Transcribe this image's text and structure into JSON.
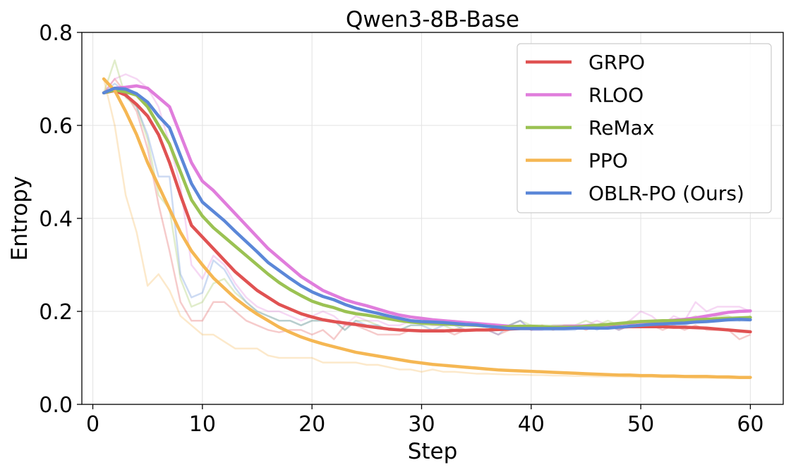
{
  "chart_data": {
    "type": "line",
    "title": "Qwen3-8B-Base",
    "xlabel": "Step",
    "ylabel": "Entropy",
    "xlim": [
      -1,
      63
    ],
    "ylim": [
      0.0,
      0.8
    ],
    "xticks": [
      0,
      10,
      20,
      30,
      40,
      50,
      60
    ],
    "yticks": [
      0.0,
      0.2,
      0.4,
      0.6,
      0.8
    ],
    "xtick_labels": [
      "0",
      "10",
      "20",
      "30",
      "40",
      "50",
      "60"
    ],
    "ytick_labels": [
      "0.0",
      "0.2",
      "0.4",
      "0.6",
      "0.8"
    ],
    "grid": true,
    "legend_position": "top-right",
    "x": [
      1,
      2,
      3,
      4,
      5,
      6,
      7,
      8,
      9,
      10,
      11,
      12,
      13,
      14,
      15,
      16,
      17,
      18,
      19,
      20,
      21,
      22,
      23,
      24,
      25,
      26,
      27,
      28,
      29,
      30,
      31,
      32,
      33,
      34,
      35,
      36,
      37,
      38,
      39,
      40,
      41,
      42,
      43,
      44,
      45,
      46,
      47,
      48,
      49,
      50,
      51,
      52,
      53,
      54,
      55,
      56,
      57,
      58,
      59,
      60
    ],
    "series": [
      {
        "name": "GRPO",
        "color": "#e05252",
        "smoothed": [
          0.67,
          0.675,
          0.665,
          0.645,
          0.62,
          0.58,
          0.52,
          0.45,
          0.385,
          0.36,
          0.335,
          0.31,
          0.285,
          0.265,
          0.245,
          0.23,
          0.215,
          0.205,
          0.195,
          0.188,
          0.182,
          0.178,
          0.175,
          0.172,
          0.168,
          0.165,
          0.162,
          0.16,
          0.159,
          0.158,
          0.158,
          0.158,
          0.159,
          0.159,
          0.16,
          0.16,
          0.161,
          0.162,
          0.163,
          0.163,
          0.164,
          0.164,
          0.165,
          0.165,
          0.165,
          0.166,
          0.166,
          0.166,
          0.167,
          0.167,
          0.167,
          0.167,
          0.166,
          0.166,
          0.165,
          0.164,
          0.162,
          0.16,
          0.158,
          0.156
        ],
        "raw": [
          0.67,
          0.7,
          0.67,
          0.63,
          0.55,
          0.43,
          0.33,
          0.22,
          0.18,
          0.18,
          0.22,
          0.22,
          0.2,
          0.18,
          0.17,
          0.16,
          0.155,
          0.16,
          0.16,
          0.15,
          0.16,
          0.14,
          0.17,
          0.17,
          0.16,
          0.15,
          0.15,
          0.15,
          0.16,
          0.16,
          0.16,
          0.16,
          0.15,
          0.16,
          0.16,
          0.16,
          0.15,
          0.16,
          0.17,
          0.16,
          0.17,
          0.16,
          0.17,
          0.17,
          0.16,
          0.17,
          0.17,
          0.16,
          0.17,
          0.18,
          0.17,
          0.16,
          0.17,
          0.16,
          0.17,
          0.16,
          0.16,
          0.16,
          0.14,
          0.15
        ]
      },
      {
        "name": "RLOO",
        "color": "#e07ddc",
        "smoothed": [
          0.67,
          0.68,
          0.682,
          0.685,
          0.68,
          0.66,
          0.64,
          0.58,
          0.52,
          0.48,
          0.46,
          0.435,
          0.41,
          0.385,
          0.36,
          0.335,
          0.315,
          0.295,
          0.275,
          0.26,
          0.245,
          0.235,
          0.225,
          0.218,
          0.212,
          0.205,
          0.198,
          0.192,
          0.188,
          0.185,
          0.182,
          0.18,
          0.178,
          0.176,
          0.174,
          0.172,
          0.17,
          0.168,
          0.167,
          0.166,
          0.166,
          0.166,
          0.167,
          0.168,
          0.169,
          0.17,
          0.171,
          0.173,
          0.175,
          0.177,
          0.178,
          0.179,
          0.181,
          0.183,
          0.186,
          0.19,
          0.194,
          0.198,
          0.2,
          0.201
        ],
        "raw": [
          0.67,
          0.7,
          0.71,
          0.7,
          0.68,
          0.64,
          0.56,
          0.47,
          0.3,
          0.27,
          0.32,
          0.3,
          0.26,
          0.23,
          0.21,
          0.2,
          0.2,
          0.19,
          0.18,
          0.19,
          0.2,
          0.19,
          0.17,
          0.19,
          0.18,
          0.18,
          0.17,
          0.17,
          0.18,
          0.18,
          0.17,
          0.17,
          0.18,
          0.17,
          0.17,
          0.17,
          0.16,
          0.17,
          0.18,
          0.16,
          0.16,
          0.17,
          0.17,
          0.17,
          0.17,
          0.18,
          0.17,
          0.17,
          0.18,
          0.2,
          0.19,
          0.17,
          0.19,
          0.18,
          0.22,
          0.2,
          0.21,
          0.21,
          0.21,
          0.2
        ]
      },
      {
        "name": "ReMax",
        "color": "#9bc253",
        "smoothed": [
          0.67,
          0.676,
          0.672,
          0.665,
          0.64,
          0.6,
          0.56,
          0.5,
          0.44,
          0.405,
          0.38,
          0.36,
          0.34,
          0.32,
          0.3,
          0.28,
          0.262,
          0.247,
          0.234,
          0.222,
          0.214,
          0.208,
          0.2,
          0.195,
          0.192,
          0.188,
          0.184,
          0.18,
          0.177,
          0.175,
          0.174,
          0.173,
          0.172,
          0.171,
          0.17,
          0.168,
          0.166,
          0.167,
          0.168,
          0.168,
          0.167,
          0.166,
          0.166,
          0.166,
          0.168,
          0.17,
          0.172,
          0.174,
          0.176,
          0.178,
          0.179,
          0.18,
          0.18,
          0.181,
          0.182,
          0.183,
          0.184,
          0.185,
          0.186,
          0.187
        ],
        "raw": [
          0.67,
          0.74,
          0.66,
          0.64,
          0.57,
          0.45,
          0.42,
          0.27,
          0.21,
          0.22,
          0.26,
          0.27,
          0.24,
          0.22,
          0.2,
          0.19,
          0.18,
          0.18,
          0.17,
          0.18,
          0.18,
          0.18,
          0.16,
          0.18,
          0.18,
          0.17,
          0.16,
          0.16,
          0.17,
          0.17,
          0.17,
          0.17,
          0.16,
          0.17,
          0.17,
          0.17,
          0.16,
          0.17,
          0.18,
          0.17,
          0.17,
          0.17,
          0.17,
          0.17,
          0.18,
          0.17,
          0.18,
          0.17,
          0.18,
          0.18,
          0.18,
          0.18,
          0.18,
          0.18,
          0.19,
          0.18,
          0.19,
          0.19,
          0.18,
          0.19
        ]
      },
      {
        "name": "PPO",
        "color": "#f5b753",
        "smoothed": [
          0.7,
          0.675,
          0.63,
          0.58,
          0.52,
          0.47,
          0.42,
          0.37,
          0.33,
          0.3,
          0.272,
          0.25,
          0.228,
          0.21,
          0.194,
          0.18,
          0.166,
          0.155,
          0.145,
          0.137,
          0.13,
          0.124,
          0.118,
          0.112,
          0.108,
          0.104,
          0.1,
          0.096,
          0.092,
          0.089,
          0.086,
          0.084,
          0.082,
          0.08,
          0.078,
          0.076,
          0.074,
          0.073,
          0.072,
          0.071,
          0.07,
          0.069,
          0.068,
          0.067,
          0.066,
          0.065,
          0.064,
          0.063,
          0.063,
          0.062,
          0.062,
          0.061,
          0.061,
          0.06,
          0.06,
          0.06,
          0.059,
          0.059,
          0.058,
          0.058
        ],
        "raw": [
          0.7,
          0.6,
          0.45,
          0.37,
          0.255,
          0.28,
          0.245,
          0.19,
          0.17,
          0.15,
          0.15,
          0.135,
          0.12,
          0.12,
          0.12,
          0.105,
          0.1,
          0.1,
          0.1,
          0.1,
          0.09,
          0.09,
          0.09,
          0.09,
          0.085,
          0.085,
          0.08,
          0.075,
          0.075,
          0.07,
          0.075,
          0.07,
          0.07,
          0.068,
          0.066,
          0.066,
          0.065,
          0.064,
          0.064,
          0.063,
          0.063,
          0.062,
          0.062,
          0.061,
          0.061,
          0.06,
          0.06,
          0.06,
          0.059,
          0.059,
          0.059,
          0.058,
          0.058,
          0.058,
          0.057,
          0.057,
          0.057,
          0.056,
          0.056,
          0.056
        ]
      },
      {
        "name": "OBLR-PO (Ours)",
        "color": "#5b87d8",
        "smoothed": [
          0.67,
          0.68,
          0.678,
          0.668,
          0.65,
          0.62,
          0.595,
          0.535,
          0.475,
          0.435,
          0.415,
          0.395,
          0.372,
          0.35,
          0.328,
          0.305,
          0.288,
          0.271,
          0.255,
          0.242,
          0.232,
          0.225,
          0.215,
          0.207,
          0.201,
          0.196,
          0.19,
          0.185,
          0.18,
          0.178,
          0.177,
          0.176,
          0.174,
          0.172,
          0.171,
          0.168,
          0.166,
          0.163,
          0.163,
          0.163,
          0.163,
          0.163,
          0.163,
          0.164,
          0.164,
          0.164,
          0.164,
          0.166,
          0.168,
          0.17,
          0.172,
          0.173,
          0.174,
          0.175,
          0.177,
          0.178,
          0.18,
          0.182,
          0.183,
          0.182
        ],
        "raw": [
          0.67,
          0.69,
          0.67,
          0.64,
          0.58,
          0.49,
          0.49,
          0.28,
          0.23,
          0.24,
          0.31,
          0.29,
          0.25,
          0.22,
          0.2,
          0.19,
          0.18,
          0.18,
          0.17,
          0.18,
          0.18,
          0.18,
          0.16,
          0.18,
          0.17,
          0.17,
          0.16,
          0.16,
          0.17,
          0.17,
          0.16,
          0.17,
          0.17,
          0.16,
          0.16,
          0.16,
          0.15,
          0.17,
          0.18,
          0.16,
          0.16,
          0.16,
          0.16,
          0.16,
          0.17,
          0.16,
          0.17,
          0.16,
          0.17,
          0.17,
          0.17,
          0.17,
          0.17,
          0.17,
          0.18,
          0.18,
          0.18,
          0.18,
          0.18,
          0.18
        ]
      }
    ]
  }
}
